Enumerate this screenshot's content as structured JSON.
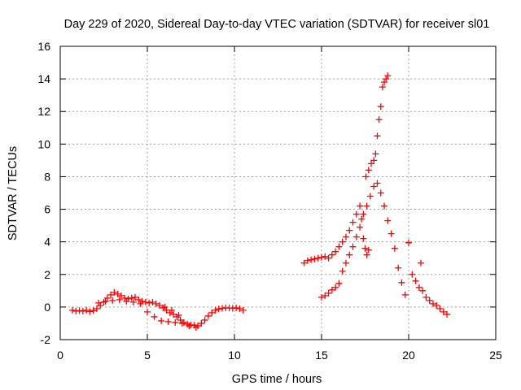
{
  "chart_data": {
    "type": "scatter",
    "title": "Day 229 of 2020, Sidereal Day-to-day VTEC variation (SDTVAR) for receiver sl01",
    "xlabel": "GPS time / hours",
    "ylabel": "SDTVAR / TECUs",
    "xlim": [
      0,
      25
    ],
    "ylim": [
      -2,
      16
    ],
    "xticks": [
      0,
      5,
      10,
      15,
      20,
      25
    ],
    "yticks": [
      -2,
      0,
      2,
      4,
      6,
      8,
      10,
      12,
      14,
      16
    ],
    "grid": true,
    "marker": "+",
    "series": [
      {
        "name": "SDTVAR",
        "color": "#ff0000",
        "points": [
          [
            0.7,
            -0.2
          ],
          [
            0.9,
            -0.25
          ],
          [
            1.1,
            -0.22
          ],
          [
            1.3,
            -0.25
          ],
          [
            1.5,
            -0.2
          ],
          [
            1.7,
            -0.28
          ],
          [
            1.9,
            -0.22
          ],
          [
            2.1,
            -0.1
          ],
          [
            2.3,
            0.1
          ],
          [
            2.5,
            0.3
          ],
          [
            2.7,
            0.55
          ],
          [
            2.9,
            0.75
          ],
          [
            3.1,
            0.9
          ],
          [
            3.3,
            0.8
          ],
          [
            3.5,
            0.7
          ],
          [
            3.7,
            0.55
          ],
          [
            3.9,
            0.5
          ],
          [
            4.1,
            0.55
          ],
          [
            4.3,
            0.6
          ],
          [
            4.5,
            0.45
          ],
          [
            4.7,
            0.35
          ],
          [
            4.9,
            0.3
          ],
          [
            5.1,
            0.25
          ],
          [
            5.3,
            0.3
          ],
          [
            5.5,
            0.2
          ],
          [
            5.7,
            0.1
          ],
          [
            5.9,
            -0.05
          ],
          [
            6.1,
            -0.2
          ],
          [
            6.3,
            -0.35
          ],
          [
            6.5,
            -0.45
          ],
          [
            6.7,
            -0.6
          ],
          [
            6.9,
            -0.8
          ],
          [
            7.1,
            -0.95
          ],
          [
            7.3,
            -1.05
          ],
          [
            7.5,
            -1.1
          ],
          [
            7.7,
            -1.12
          ],
          [
            7.9,
            -1.15
          ],
          [
            8.1,
            -1.0
          ],
          [
            8.3,
            -0.8
          ],
          [
            8.5,
            -0.55
          ],
          [
            8.7,
            -0.35
          ],
          [
            8.9,
            -0.2
          ],
          [
            9.1,
            -0.12
          ],
          [
            9.3,
            -0.08
          ],
          [
            9.5,
            -0.05
          ],
          [
            9.7,
            -0.06
          ],
          [
            9.9,
            -0.08
          ],
          [
            10.1,
            -0.05
          ],
          [
            10.3,
            -0.1
          ],
          [
            10.5,
            -0.2
          ],
          [
            2.2,
            0.25
          ],
          [
            2.6,
            0.35
          ],
          [
            3.0,
            0.4
          ],
          [
            3.4,
            0.45
          ],
          [
            3.8,
            0.35
          ],
          [
            4.2,
            0.3
          ],
          [
            4.6,
            0.2
          ],
          [
            5.0,
            -0.3
          ],
          [
            5.4,
            -0.6
          ],
          [
            5.8,
            -0.85
          ],
          [
            6.2,
            -0.9
          ],
          [
            6.6,
            -0.95
          ],
          [
            7.0,
            -1.0
          ],
          [
            7.4,
            -1.15
          ],
          [
            7.8,
            -1.25
          ],
          [
            6.0,
            0.0
          ],
          [
            6.4,
            -0.2
          ],
          [
            6.8,
            -0.5
          ],
          [
            14.0,
            2.7
          ],
          [
            14.2,
            2.85
          ],
          [
            14.4,
            2.9
          ],
          [
            14.6,
            2.95
          ],
          [
            14.8,
            3.0
          ],
          [
            15.0,
            3.05
          ],
          [
            15.2,
            3.1
          ],
          [
            15.4,
            3.0
          ],
          [
            15.6,
            3.2
          ],
          [
            15.8,
            3.4
          ],
          [
            16.0,
            3.7
          ],
          [
            16.2,
            4.0
          ],
          [
            16.4,
            4.3
          ],
          [
            16.6,
            4.7
          ],
          [
            16.8,
            5.2
          ],
          [
            17.0,
            5.7
          ],
          [
            17.2,
            6.2
          ],
          [
            17.3,
            5.4
          ],
          [
            17.4,
            4.2
          ],
          [
            17.5,
            3.6
          ],
          [
            17.6,
            3.2
          ],
          [
            17.7,
            3.5
          ],
          [
            17.55,
            8.0
          ],
          [
            17.7,
            8.4
          ],
          [
            17.85,
            8.8
          ],
          [
            18.0,
            9.0
          ],
          [
            18.1,
            9.4
          ],
          [
            18.2,
            10.5
          ],
          [
            18.3,
            11.5
          ],
          [
            18.4,
            12.3
          ],
          [
            18.5,
            13.5
          ],
          [
            18.6,
            13.8
          ],
          [
            18.7,
            14.0
          ],
          [
            18.8,
            14.2
          ],
          [
            15.0,
            0.6
          ],
          [
            15.2,
            0.7
          ],
          [
            15.4,
            0.85
          ],
          [
            15.6,
            1.05
          ],
          [
            15.8,
            1.2
          ],
          [
            16.0,
            1.45
          ],
          [
            16.2,
            2.2
          ],
          [
            16.4,
            2.7
          ],
          [
            16.6,
            3.2
          ],
          [
            16.8,
            3.7
          ],
          [
            17.0,
            4.3
          ],
          [
            17.2,
            4.9
          ],
          [
            17.4,
            5.7
          ],
          [
            17.6,
            6.2
          ],
          [
            17.8,
            6.8
          ],
          [
            18.0,
            7.4
          ],
          [
            18.2,
            7.6
          ],
          [
            18.4,
            7.0
          ],
          [
            18.6,
            6.2
          ],
          [
            18.8,
            5.3
          ],
          [
            19.0,
            4.5
          ],
          [
            19.2,
            3.6
          ],
          [
            19.4,
            2.4
          ],
          [
            19.6,
            1.5
          ],
          [
            19.8,
            0.75
          ],
          [
            20.0,
            3.95
          ],
          [
            20.2,
            2.0
          ],
          [
            20.4,
            1.6
          ],
          [
            20.6,
            1.2
          ],
          [
            20.8,
            1.0
          ],
          [
            21.0,
            0.6
          ],
          [
            21.2,
            0.4
          ],
          [
            21.4,
            0.2
          ],
          [
            21.6,
            0.1
          ],
          [
            21.8,
            -0.1
          ],
          [
            22.0,
            -0.3
          ],
          [
            22.2,
            -0.45
          ],
          [
            20.7,
            2.7
          ]
        ]
      }
    ]
  }
}
